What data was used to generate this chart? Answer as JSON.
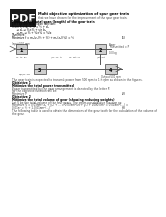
{
  "title": "Multi objective optimization of spur gear train",
  "subtitle": "that we have chosen for the improvement of the spur gear train.",
  "pdf_bg": "#1a1a1a",
  "pdf_text": "#ffffff",
  "background_color": "#ffffff",
  "text_color": "#000000",
  "gray_text": "#444444",
  "section1_header": "Minimize the total span (length) of the gear train",
  "section1_sub": "Let f be the total Span function:",
  "math1": "From S = d₁ = ½ = ½ + d₄",
  "math2": "   ⇒ d₁ ⇒ ⅛×⅛ + sin b₂",
  "math3": "   ⇒ m₂ ⇒ ⅛ + ⅛×⅛ = ⅛/x",
  "therefore": "Therefore:",
  "minimize_f": "Minimize f = m₂(z₂(½ + ¼) + m₂(z₄)(¼) = ½",
  "eq1": "(1)",
  "input_label": "Input 500 rpm",
  "power_label1": "Power",
  "power_label2": "Transmitted = P",
  "weight_label": "0.0 kg",
  "shaft1_labels": "f1, t1, b1",
  "shaft1_mid": "(i1, T1, ti",
  "shaft2_labels": "f2, mt, f1",
  "shaft2_right": "(kt, mt",
  "gear3_label": "D(T)Ω=Ω₂",
  "output_label": "Output 500 rpm",
  "desc_line": "The gear train is expected to transmit power from 500 rpm to 1 it rpm as shown in the figures.",
  "obj1_header": "Objective 1",
  "obj1_sub": "Minimize the total power transmitted",
  "obj1_line1": "Power transmitted by the gear arrangement is denoted by the letter P.",
  "obj1_line2": "for the objective function will be:",
  "obj1_minimize": "Minimize P",
  "eq2": "(2)",
  "obj2_header": "Objective 2",
  "obj2_sub": "Minimize the total volume of gear (showing reducing weights)",
  "obj2_line1": "Let V be the total volume of the four gears. The gears our objective function as:",
  "obj2_minimize1": "Minimize V = 0.03πm²(z₂ + y₂) + ... = 0.03πm²(z₂ + y₂) + 1000.0m² = 0.01πm²(...) =",
  "obj2_minimize2": "0.01π² = ½ + 1.0.01πm²(...)",
  "eq3": "(3)",
  "table_line1": "The following table is used to obtain the dimensions of the gear tooth for the calculation of the volume of",
  "table_line2": "the gear."
}
